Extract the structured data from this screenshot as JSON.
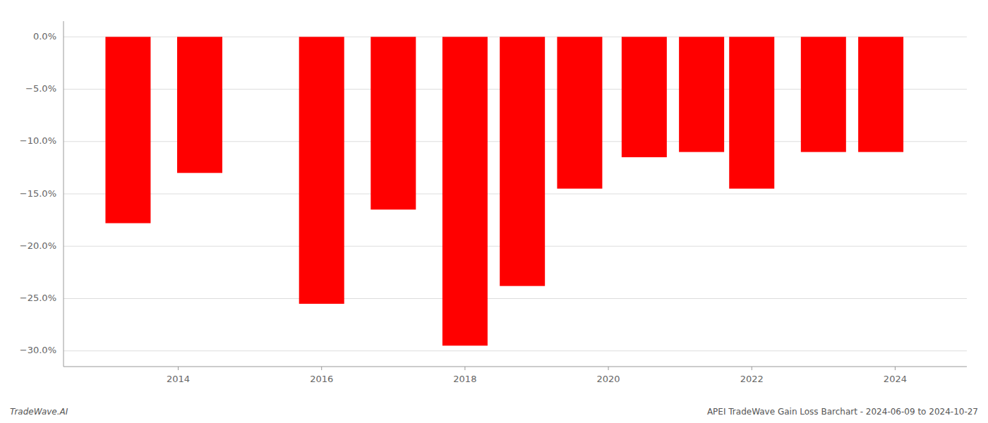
{
  "chart_data": {
    "type": "bar",
    "x": [
      2013.3,
      2014.3,
      2016.0,
      2017.0,
      2018.0,
      2018.8,
      2019.6,
      2020.5,
      2021.3,
      2022.0,
      2023.0,
      2023.8
    ],
    "values": [
      -17.8,
      -13.0,
      -25.5,
      -16.5,
      -29.5,
      -23.8,
      -14.5,
      -11.5,
      -11.0,
      -14.5,
      -11.0,
      -11.0
    ],
    "color": "#ff0000",
    "xlim": [
      2012.4,
      2025.0
    ],
    "xticks": [
      2014,
      2016,
      2018,
      2020,
      2022,
      2024
    ],
    "ylim": [
      -31.5,
      1.5
    ],
    "yticks": [
      {
        "value": 0.0,
        "label": "0.0%"
      },
      {
        "value": -5.0,
        "label": "−5.0%"
      },
      {
        "value": -10.0,
        "label": "−10.0%"
      },
      {
        "value": -15.0,
        "label": "−15.0%"
      },
      {
        "value": -20.0,
        "label": "−20.0%"
      },
      {
        "value": -25.0,
        "label": "−25.0%"
      },
      {
        "value": -30.0,
        "label": "−30.0%"
      }
    ],
    "grid": true,
    "annotations": [
      "TradeWave.AI",
      "APEI TradeWave Gain Loss Barchart - 2024-06-09 to 2024-10-27"
    ]
  }
}
